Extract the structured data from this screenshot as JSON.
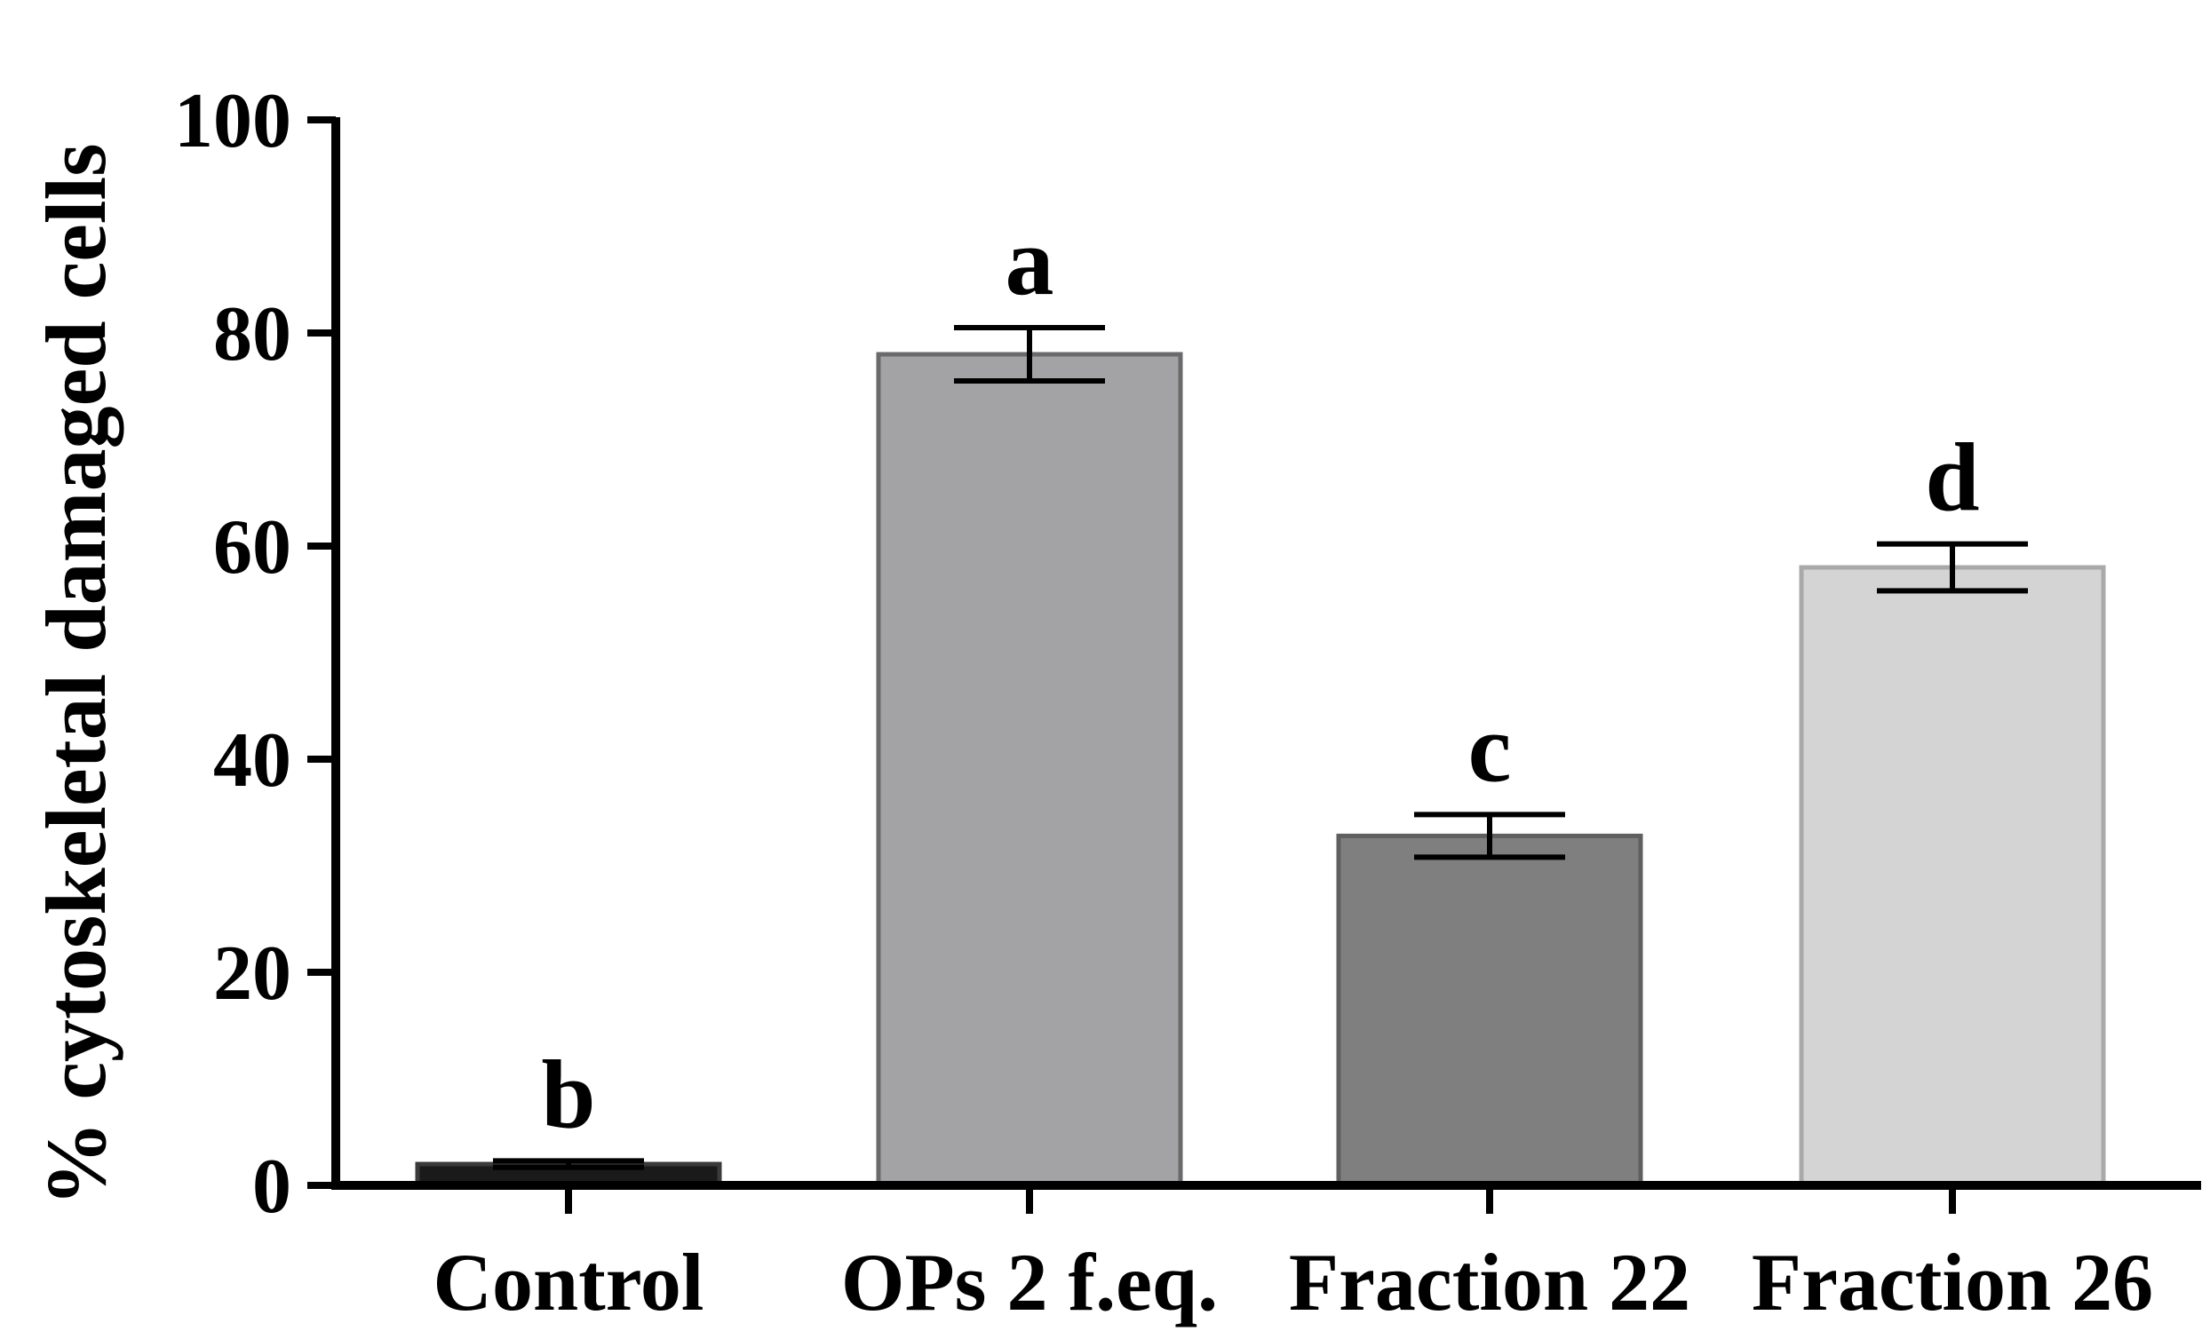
{
  "chart_data": {
    "type": "bar",
    "title": "",
    "xlabel": "",
    "ylabel": "% cytoskeletal damaged cells",
    "ylim": [
      0,
      100
    ],
    "yticks": [
      0,
      20,
      40,
      60,
      80,
      100
    ],
    "categories": [
      "Control",
      "OPs 2 f.eq.",
      "Fraction 22",
      "Fraction 26"
    ],
    "values": [
      2.0,
      78.0,
      32.8,
      58.0
    ],
    "errors": [
      0.3,
      2.5,
      2.0,
      2.2
    ],
    "significance": [
      "b",
      "a",
      "c",
      "d"
    ],
    "colors": [
      "#1a1a1a",
      "#a3a3a6",
      "#7f7f7f",
      "#d4d4d4"
    ],
    "edge_colors": [
      "#3a3a3a",
      "#6a6a6a",
      "#5f5f5f",
      "#a9a9a9"
    ],
    "grid": false,
    "legend": "none"
  }
}
